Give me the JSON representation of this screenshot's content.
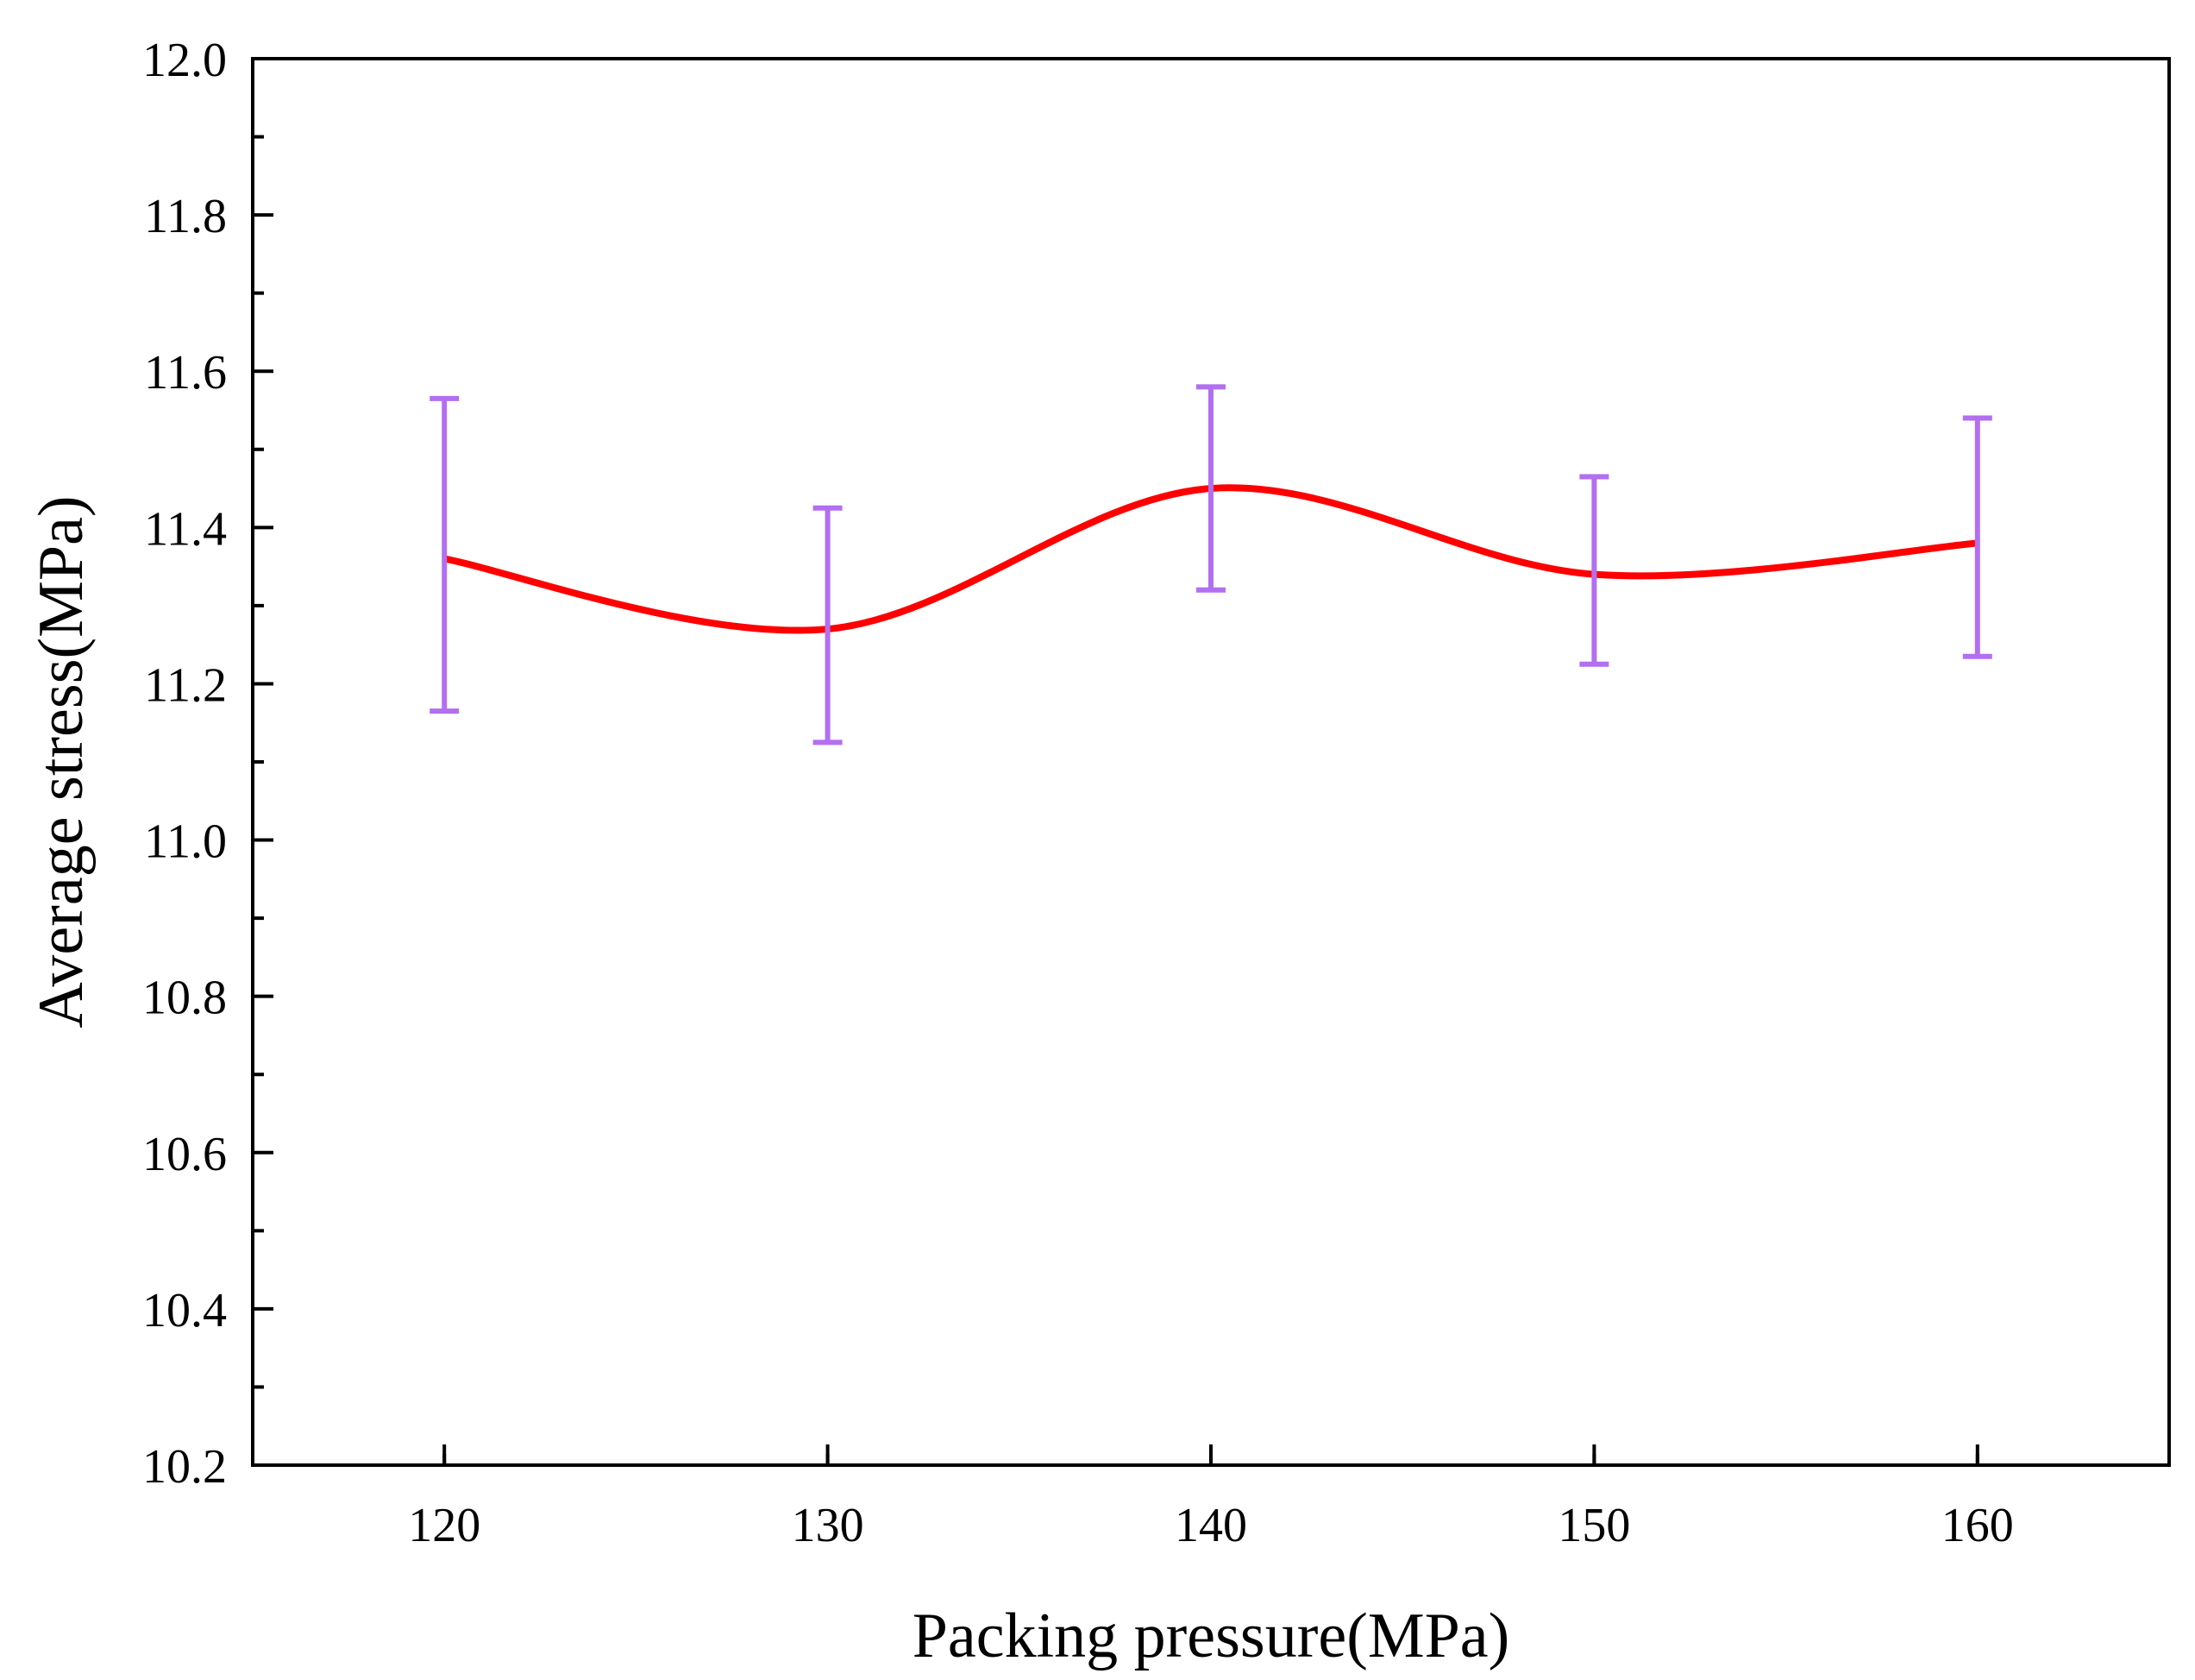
{
  "chart_data": {
    "type": "line",
    "title": "",
    "xlabel": "Packing pressure(MPa)",
    "ylabel": "Average stress(MPa)",
    "xlim": [
      115,
      165
    ],
    "ylim": [
      10.2,
      12.0
    ],
    "x_ticks": [
      "120",
      "130",
      "140",
      "150",
      "160"
    ],
    "y_ticks": [
      "10.2",
      "10.4",
      "10.6",
      "10.8",
      "11.0",
      "11.2",
      "11.4",
      "11.6",
      "11.8",
      "12.0"
    ],
    "smooth": true,
    "series": [
      {
        "name": "Average stress",
        "x": [
          120,
          130,
          140,
          150,
          160
        ],
        "y": [
          11.36,
          11.27,
          11.45,
          11.34,
          11.38
        ],
        "error_low": [
          11.165,
          11.125,
          11.32,
          11.225,
          11.235
        ],
        "error_high": [
          11.565,
          11.425,
          11.58,
          11.465,
          11.54
        ],
        "line_color": "#ff0000",
        "errorbar_color": "#b26ff0"
      }
    ]
  }
}
